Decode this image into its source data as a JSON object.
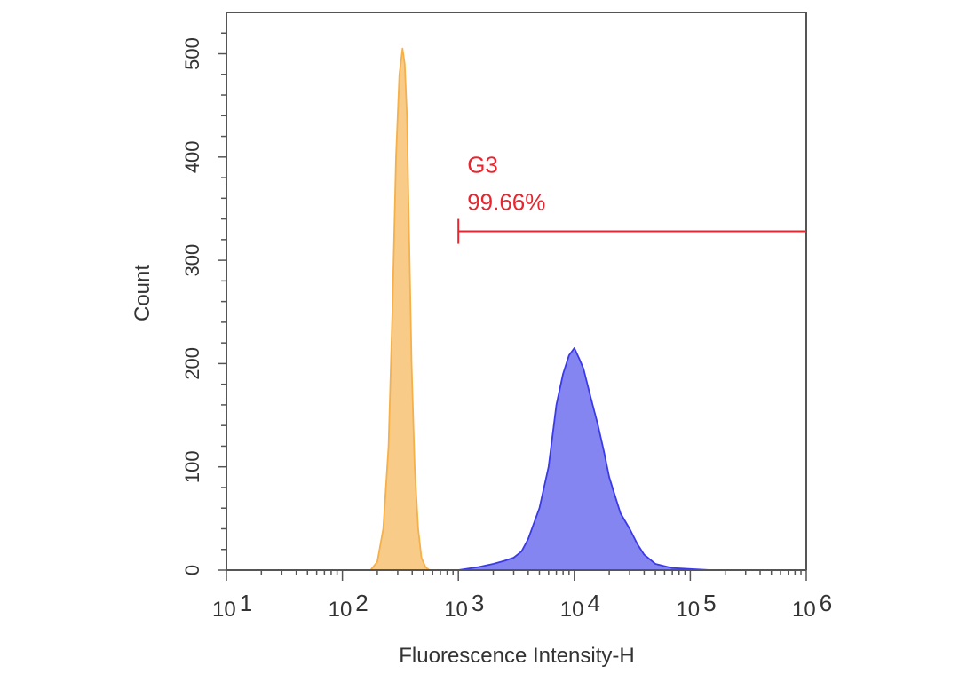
{
  "chart_data": {
    "type": "area",
    "title": "",
    "xlabel": "Fluorescence Intensity-H",
    "ylabel": "Count",
    "x_scale": "log",
    "xlim": [
      10,
      1000000
    ],
    "ylim": [
      0,
      540
    ],
    "grid": false,
    "x_ticks": [
      {
        "base": "10",
        "exp": "1",
        "value": 10
      },
      {
        "base": "10",
        "exp": "2",
        "value": 100
      },
      {
        "base": "10",
        "exp": "3",
        "value": 1000
      },
      {
        "base": "10",
        "exp": "4",
        "value": 10000
      },
      {
        "base": "10",
        "exp": "5",
        "value": 100000
      },
      {
        "base": "10",
        "exp": "6",
        "value": 1000000
      }
    ],
    "y_ticks": [
      "0",
      "100",
      "200",
      "300",
      "400",
      "500"
    ],
    "series": [
      {
        "color": "#f5b04a",
        "fill": "#f8cc88",
        "x": [
          175,
          200,
          225,
          250,
          270,
          290,
          310,
          330,
          345,
          360,
          375,
          395,
          420,
          450,
          480,
          520,
          560
        ],
        "y": [
          0,
          8,
          40,
          120,
          250,
          400,
          480,
          505,
          490,
          440,
          330,
          200,
          100,
          40,
          12,
          3,
          0
        ]
      },
      {
        "color": "#3a3ae8",
        "fill": "#8585f2",
        "x": [
          1000,
          1500,
          2000,
          2500,
          3000,
          3500,
          4000,
          5000,
          6000,
          7000,
          8000,
          9000,
          10000,
          11000,
          12000,
          14000,
          16000,
          18000,
          20000,
          22000,
          25000,
          30000,
          35000,
          40000,
          50000,
          70000,
          100000,
          150000,
          200000
        ],
        "y": [
          0,
          3,
          6,
          9,
          12,
          18,
          30,
          60,
          100,
          160,
          190,
          208,
          215,
          205,
          195,
          165,
          140,
          115,
          90,
          75,
          55,
          40,
          25,
          15,
          6,
          2,
          1,
          0,
          0
        ]
      }
    ],
    "annotations": [
      {
        "name": "G3",
        "percent": "99.66%",
        "color": "#e8262f",
        "x_start": 1000,
        "x_end": 1000000,
        "y_level": 328
      }
    ]
  }
}
